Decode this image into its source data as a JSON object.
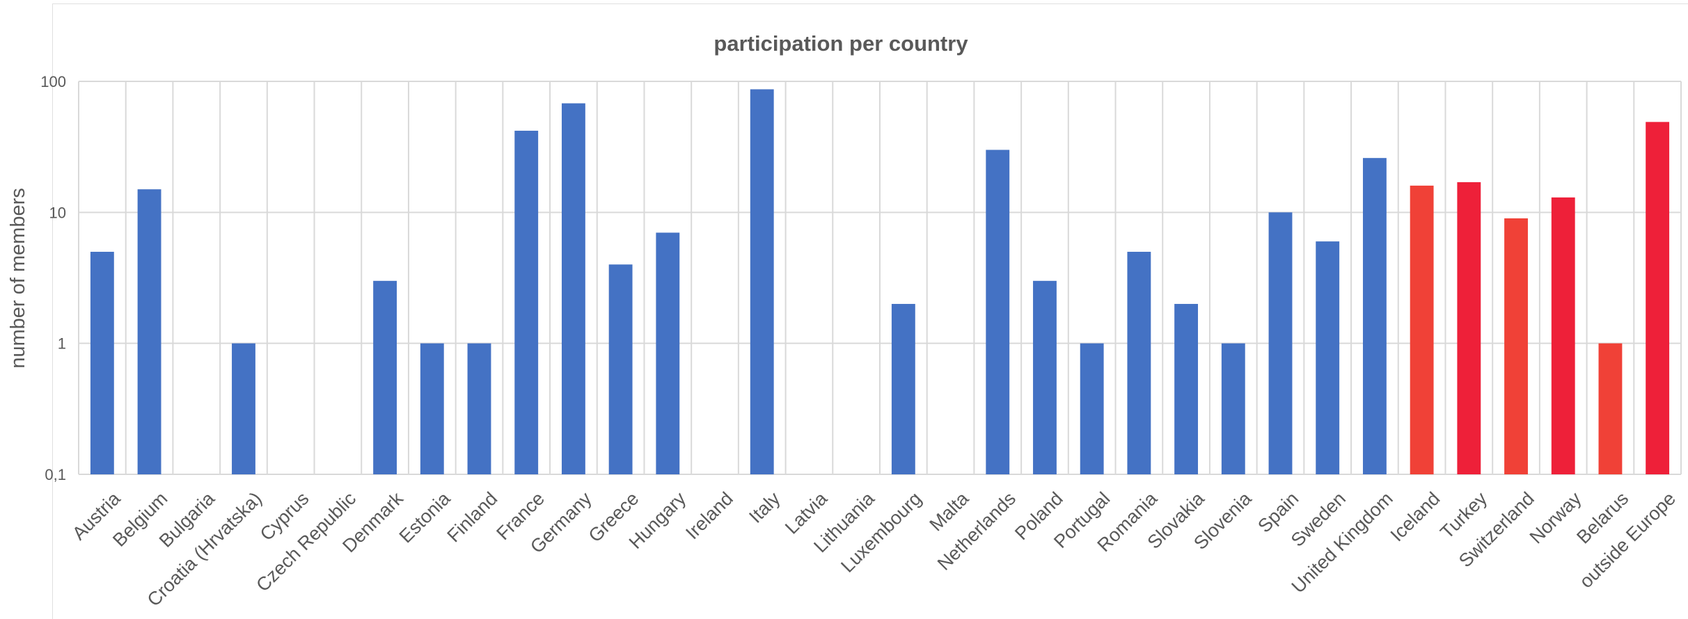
{
  "chart_data": {
    "type": "bar",
    "title": "participation per country",
    "xlabel": "",
    "ylabel": "number of members",
    "yscale": "log",
    "ylim": [
      0.1,
      100
    ],
    "ytick_labels": [
      "0,1",
      "1",
      "10",
      "100"
    ],
    "grid": true,
    "legend": "none",
    "categories": [
      "Austria",
      "Belgium",
      "Bulgaria",
      "Croatia (Hrvatska)",
      "Cyprus",
      "Czech Republic",
      "Denmark",
      "Estonia",
      "Finland",
      "France",
      "Germany",
      "Greece",
      "Hungary",
      "Ireland",
      "Italy",
      "Latvia",
      "Lithuania",
      "Luxembourg",
      "Malta",
      "Netherlands",
      "Poland",
      "Portugal",
      "Romania",
      "Slovakia",
      "Slovenia",
      "Spain",
      "Sweden",
      "United Kingdom",
      "Iceland",
      "Turkey",
      "Switzerland",
      "Norway",
      "Belarus",
      "outside Europe"
    ],
    "values": [
      5,
      15,
      null,
      1,
      null,
      null,
      3,
      1,
      1,
      42,
      68,
      4,
      7,
      null,
      87,
      null,
      null,
      2,
      null,
      30,
      3,
      1,
      5,
      2,
      1,
      10,
      6,
      26,
      16,
      17,
      9,
      13,
      1,
      49
    ],
    "colors": {
      "primary": "#4472c4",
      "highlight": [
        "#f04137",
        "#ee2039",
        "#f04137",
        "#ee2039",
        "#f04137",
        "#ee2039"
      ]
    },
    "highlight_start_index": 28
  }
}
